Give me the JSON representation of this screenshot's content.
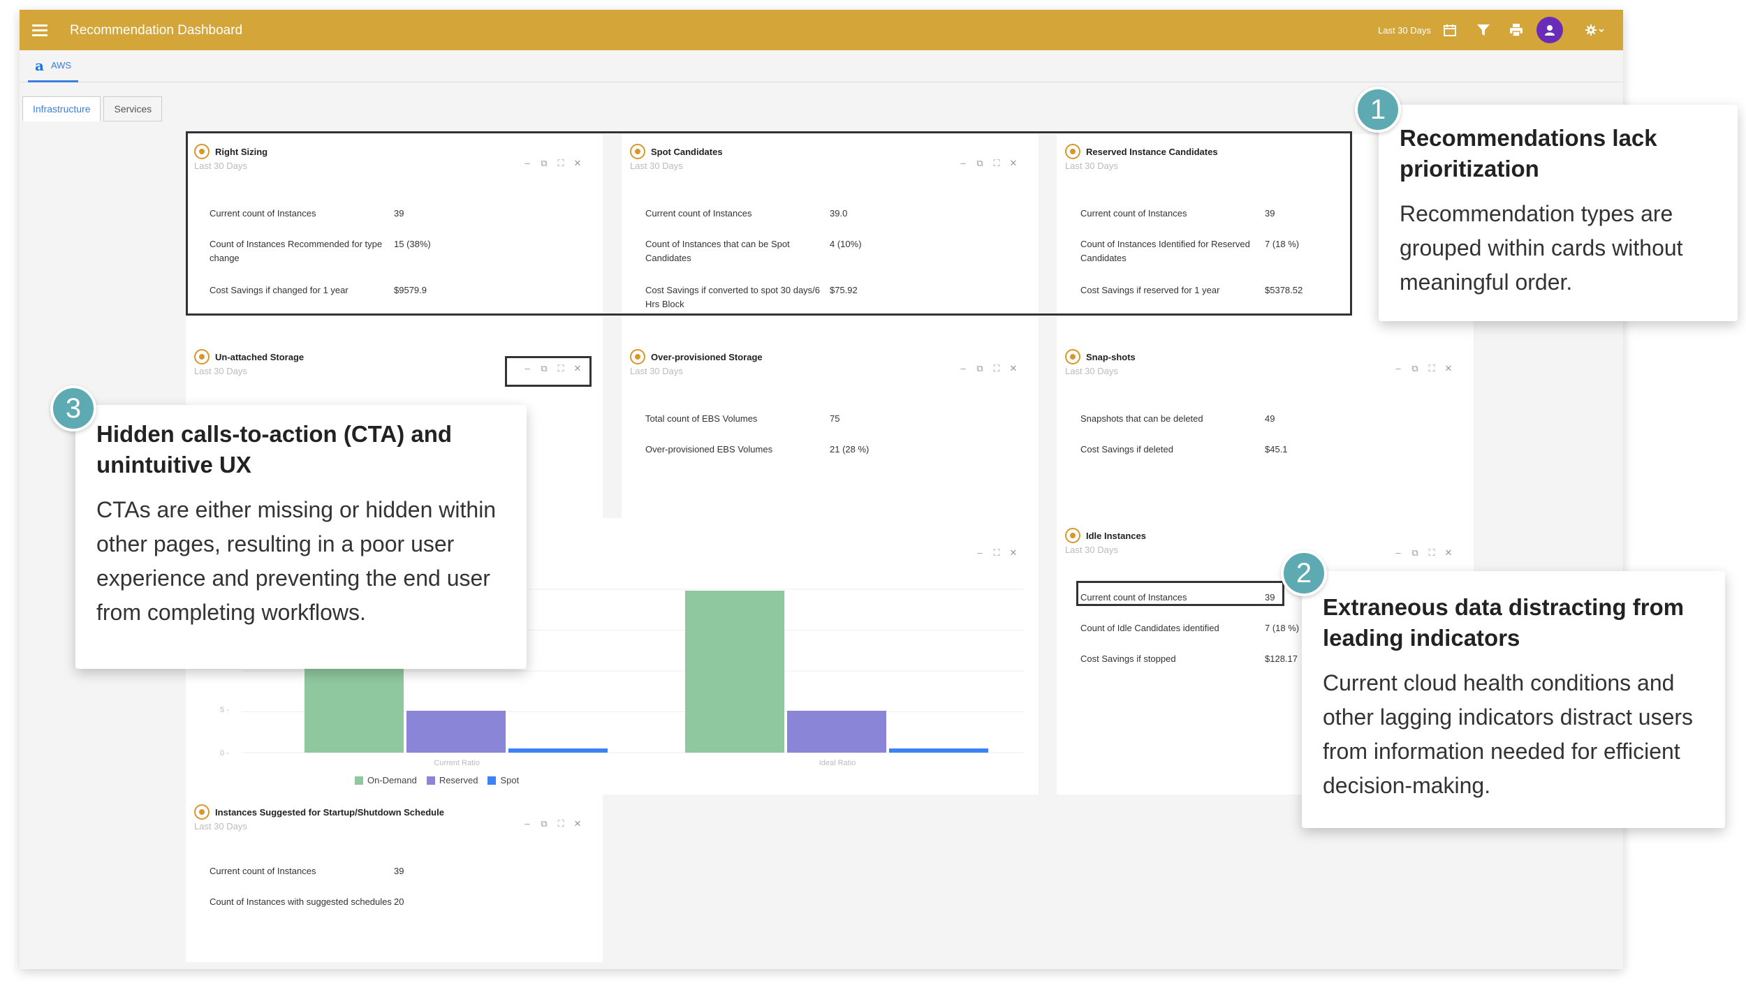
{
  "app": {
    "title": "Recommendation Dashboard",
    "date_range": "Last 30 Days"
  },
  "provider": {
    "label": "AWS"
  },
  "tabs": [
    {
      "label": "Infrastructure"
    },
    {
      "label": "Services"
    }
  ],
  "cards": {
    "right_sizing": {
      "title": "Right Sizing",
      "subtitle": "Last 30 Days",
      "rows": [
        {
          "k": "Current count of Instances",
          "v": "39"
        },
        {
          "k": "Count of Instances Recommended for type change",
          "v": "15 (38%)"
        },
        {
          "k": "Cost Savings if changed for 1 year",
          "v": "$9579.9"
        }
      ]
    },
    "spot": {
      "title": "Spot Candidates",
      "subtitle": "Last 30 Days",
      "rows": [
        {
          "k": "Current count of Instances",
          "v": "39.0"
        },
        {
          "k": "Count of Instances that can be Spot Candidates",
          "v": "4 (10%)"
        },
        {
          "k": "Cost Savings if converted to spot 30 days/6 Hrs Block",
          "v": "$75.92"
        }
      ]
    },
    "reserved": {
      "title": "Reserved Instance Candidates",
      "subtitle": "Last 30 Days",
      "rows": [
        {
          "k": "Current count of Instances",
          "v": "39"
        },
        {
          "k": "Count of Instances Identified for Reserved Candidates",
          "v": "7 (18 %)"
        },
        {
          "k": "Cost Savings if reserved for 1 year",
          "v": "$5378.52"
        }
      ]
    },
    "unattached": {
      "title": "Un-attached Storage",
      "subtitle": "Last 30 Days"
    },
    "overprov": {
      "title": "Over-provisioned Storage",
      "subtitle": "Last 30 Days",
      "rows": [
        {
          "k": "Total count of EBS Volumes",
          "v": "75"
        },
        {
          "k": "Over-provisioned EBS Volumes",
          "v": "21 (28 %)"
        }
      ]
    },
    "snapshots": {
      "title": "Snap-shots",
      "subtitle": "Last 30 Days",
      "rows": [
        {
          "k": "Snapshots that can be deleted",
          "v": "49"
        },
        {
          "k": "Cost Savings if deleted",
          "v": "$45.1"
        }
      ]
    },
    "idle": {
      "title": "Idle Instances",
      "subtitle": "Last 30 Days",
      "rows": [
        {
          "k": "Current count of Instances",
          "v": "39"
        },
        {
          "k": "Count of Idle Candidates identified",
          "v": "7 (18 %)"
        },
        {
          "k": "Cost Savings if stopped",
          "v": "$128.17"
        }
      ]
    },
    "schedule": {
      "title": "Instances Suggested for Startup/Shutdown Schedule",
      "subtitle": "Last 30 Days",
      "rows": [
        {
          "k": "Current count of Instances",
          "v": "39"
        },
        {
          "k": "Count of Instances with suggested schedules",
          "v": "20"
        }
      ]
    }
  },
  "chart_data": {
    "type": "bar",
    "categories": [
      "Current Ratio",
      "Ideal Ratio"
    ],
    "series": [
      {
        "name": "On-Demand",
        "color": "#8fc89e",
        "values": [
          null,
          null
        ]
      },
      {
        "name": "Reserved",
        "color": "#8a85d6",
        "values": [
          null,
          null
        ]
      },
      {
        "name": "Spot",
        "color": "#3b82f6",
        "values": [
          null,
          null
        ]
      }
    ],
    "y_tick_labels": [
      "5",
      "0"
    ],
    "legend_position": "bottom"
  },
  "callouts": [
    {
      "num": "1",
      "title": "Recommendations lack prioritization",
      "body": "Recommendation types are grouped within cards without meaningful order."
    },
    {
      "num": "2",
      "title": "Extraneous data distracting from leading indicators",
      "body": "Current cloud health conditions and other lagging indicators distract users from information needed for efficient decision-making."
    },
    {
      "num": "3",
      "title": "Hidden calls-to-action (CTA) and unintuitive UX",
      "body": "CTAs are either missing or hidden within other pages, resulting in a poor user experience and preventing the end user from completing workflows."
    }
  ],
  "colors": {
    "topbar": "#d4a63a",
    "accent": "#3b7ddd",
    "badge": "#5eaab2",
    "avatar": "#6a2bb8"
  },
  "_unreadable": [
    "Exact bar values in the chart cannot be read (only tick labels 5 and 0 are visible); values set to null."
  ]
}
